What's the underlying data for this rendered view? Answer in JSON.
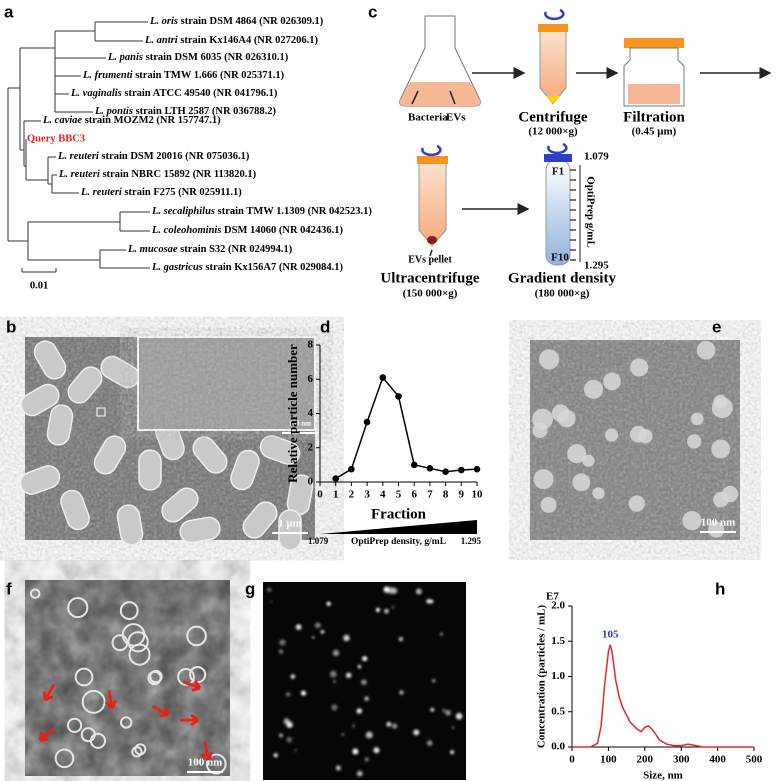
{
  "panel_labels": [
    "a",
    "b",
    "c",
    "d",
    "e",
    "f",
    "g",
    "h"
  ],
  "tree": {
    "leaves": [
      {
        "species": "L. oris",
        "strain": "strain DSM 4864 (NR 026309.1)"
      },
      {
        "species": "L. antri",
        "strain": "strain Kx146A4 (NR 027206.1)"
      },
      {
        "species": "L. panis",
        "strain": "strain DSM 6035 (NR 026310.1)"
      },
      {
        "species": "L. frumenti",
        "strain": "strain TMW 1.666 (NR 025371.1)"
      },
      {
        "species": "L. vaginalis",
        "strain": "strain ATCC 49540 (NR 041796.1)"
      },
      {
        "species": "L. pontis",
        "strain": "strain LTH 2587 (NR 036788.2)"
      },
      {
        "species": "L. caviae",
        "strain": "strain MOZM2 (NR 157747.1)"
      },
      {
        "species": "L. reuteri",
        "strain": "strain DSM 20016 (NR 075036.1)"
      },
      {
        "species": "L. reuteri",
        "strain": "strain NBRC 15892 (NR 113820.1)"
      },
      {
        "species": "L. reuteri",
        "strain": "strain F275 (NR 025911.1)"
      },
      {
        "species": "L. secaliphilus",
        "strain": "strain TMW 1.1309 (NR 042523.1)"
      },
      {
        "species": "L. coleohominis",
        "strain": "DSM 14060 (NR 042436.1)"
      },
      {
        "species": "L. mucosae",
        "strain": "strain S32 (NR 024994.1)"
      },
      {
        "species": "L. gastricus",
        "strain": "strain Kx156A7 (NR 029084.1)"
      }
    ],
    "query": "Query BBC3",
    "scale_label": "0.01"
  },
  "workflow": {
    "bacteria": "Bacteria",
    "evs": "EVs",
    "centrifuge": "Centrifuge",
    "centrifuge_speed": "(12 000×g)",
    "filtration": "Filtration",
    "filter_size": "(0.45 μm)",
    "pellet": "EVs pellet",
    "ultracentrifuge": "Ultracentrifuge",
    "ultracentrifuge_speed": "(150 000×g)",
    "gradient": "Gradient density",
    "gradient_speed": "(180 000×g)",
    "top_fraction": "F1",
    "bottom_fraction": "F10",
    "top_density": "1.079",
    "bottom_density": "1.295",
    "density_axis": "OptiPrep g/mL"
  },
  "micrographs": {
    "b_scale": "1 μm",
    "b_inset_scale": "100 nm",
    "e_scale": "100 nm",
    "f_scale": "100 nm"
  },
  "chart_data": [
    {
      "type": "line",
      "x": [
        1,
        2,
        3,
        4,
        5,
        6,
        7,
        8,
        9,
        10
      ],
      "values": [
        0.2,
        0.75,
        3.5,
        6.1,
        5.0,
        1.0,
        0.8,
        0.6,
        0.7,
        0.75
      ],
      "color": "#000000",
      "markers": true,
      "xlim": [
        0,
        10
      ],
      "xticks": [
        0,
        1,
        2,
        3,
        4,
        5,
        6,
        7,
        8,
        9,
        10
      ],
      "ylim": [
        0,
        8
      ],
      "yticks": [
        0,
        2,
        4,
        6,
        8
      ],
      "xlabel": "Fraction",
      "ylabel": "Relative particle number",
      "density_scale": {
        "start": "1.079",
        "label": "OptiPrep density, g/mL",
        "end": "1.295"
      }
    },
    {
      "type": "line",
      "x": [
        0,
        50,
        70,
        80,
        90,
        100,
        105,
        110,
        120,
        130,
        140,
        150,
        160,
        170,
        180,
        190,
        200,
        210,
        220,
        230,
        240,
        260,
        280,
        300,
        320,
        340,
        360,
        380,
        400,
        500
      ],
      "values": [
        0,
        0,
        0.05,
        0.3,
        0.9,
        1.35,
        1.45,
        1.35,
        0.95,
        0.7,
        0.55,
        0.45,
        0.35,
        0.3,
        0.25,
        0.22,
        0.28,
        0.3,
        0.25,
        0.18,
        0.1,
        0.04,
        0.02,
        0.02,
        0.04,
        0.02,
        0,
        0,
        0,
        0
      ],
      "color": "#e8262a",
      "markers": false,
      "xlim": [
        0,
        500
      ],
      "xticks": [
        0,
        100,
        200,
        300,
        400,
        500
      ],
      "ylim": [
        0,
        2
      ],
      "yticks": [
        {
          "value": 0,
          "label": "0.0"
        },
        0.5,
        {
          "value": 1,
          "label": "1.0"
        },
        1.5,
        {
          "value": 2,
          "label": "2.0"
        }
      ],
      "xlabel": "Size, nm",
      "ylabel": "Concentration (particles / mL)",
      "unit_label": "E7",
      "peak_label": "105"
    }
  ]
}
